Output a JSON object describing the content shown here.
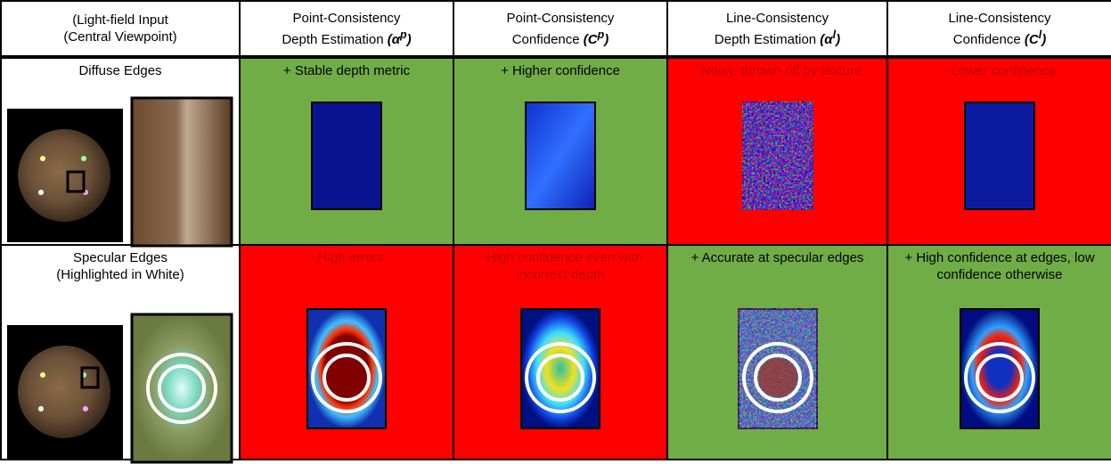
{
  "header": [
    {
      "line1": "(Light-field Input",
      "line2": "(Central Viewpoint)"
    },
    {
      "line1": "Point-Consistency",
      "line2": "Depth Estimation ",
      "open": "(",
      "symbol": "α",
      "sup": "p",
      "close": ")"
    },
    {
      "line1": "Point-Consistency",
      "line2": "Confidence ",
      "open": "(",
      "symbol": "C",
      "sup": "p",
      "close": ")"
    },
    {
      "line1": "Line-Consistency",
      "line2": "Depth Estimation ",
      "open": "(",
      "symbol": "α",
      "sup": "l",
      "close": ")"
    },
    {
      "line1": "Line-Consistency",
      "line2": "Confidence ",
      "open": "(",
      "symbol": "C",
      "sup": "l",
      "close": ")"
    }
  ],
  "rows": [
    {
      "label": [
        "Diffuse Edges"
      ],
      "cells": [
        {
          "note": "+ Stable depth metric",
          "color": "#70ad47",
          "text_color": "#000000"
        },
        {
          "note": "+ Higher confidence",
          "color": "#70ad47",
          "text_color": "#000000"
        },
        {
          "note": "- Noisy, thrown off by texture",
          "color": "#ff0000",
          "text_color": "#c00000"
        },
        {
          "note": "- Lower confidence",
          "color": "#ff0000",
          "text_color": "#c00000"
        }
      ]
    },
    {
      "label": [
        "Specular Edges",
        "(Highlighted in White)"
      ],
      "cells": [
        {
          "note": "- High errors",
          "color": "#ff0000",
          "text_color": "#c00000"
        },
        {
          "note": "- High confidence even with incorrect depth",
          "color": "#ff0000",
          "text_color": "#c00000"
        },
        {
          "note": "+ Accurate at specular edges",
          "color": "#70ad47",
          "text_color": "#000000"
        },
        {
          "note": "+ High confidence at edges, low confidence otherwise",
          "color": "#70ad47",
          "text_color": "#000000"
        }
      ]
    }
  ]
}
